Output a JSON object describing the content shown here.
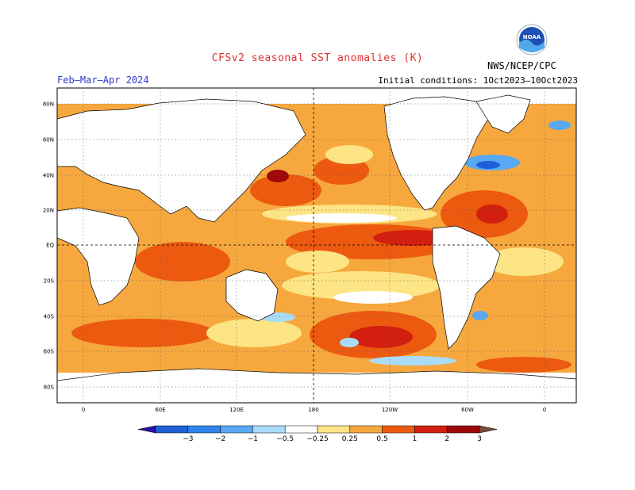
{
  "title": "CFSv2 seasonal SST anomalies (K)",
  "season": "Feb–Mar–Apr 2024",
  "initial_conditions": "Initial conditions: 1Oct2023–10Oct2023",
  "agency": "NWS/NCEP/CPC",
  "logo_text": "NOAA",
  "lat_labels": [
    "80N",
    "60N",
    "40N",
    "20N",
    "EQ",
    "20S",
    "40S",
    "60S",
    "80S"
  ],
  "lon_labels": [
    "0",
    "60E",
    "120E",
    "180",
    "120W",
    "60W",
    "0"
  ],
  "colorbar": {
    "labels": [
      "−3",
      "−2",
      "−1",
      "−0.5",
      "−0.25",
      "0.25",
      "0.5",
      "1",
      "2",
      "3"
    ],
    "colors": [
      "#2a0fa0",
      "#1f5fd8",
      "#2f84ee",
      "#58a8f4",
      "#a8dcf8",
      "#ffffff",
      "#fde484",
      "#f6a83e",
      "#ec5a10",
      "#d21f10",
      "#9e0808",
      "#7a4a3a"
    ]
  },
  "colors": {
    "land": "#ffffff",
    "ocean_base": "#f6a83e",
    "title": "#e03030",
    "season": "#2a3cc8"
  }
}
